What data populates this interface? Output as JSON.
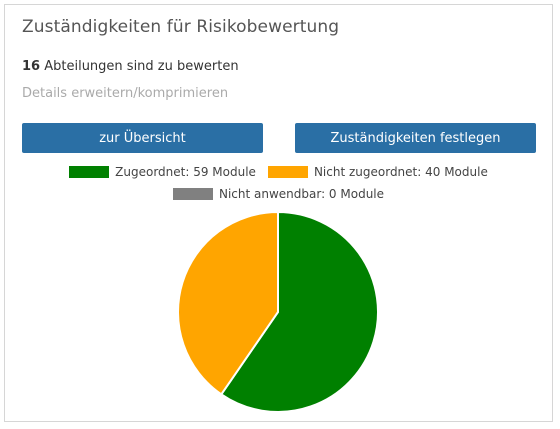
{
  "panel": {
    "title": "Zuständigkeiten für Risikobewertung",
    "summary_count": "16",
    "summary_text": " Abteilungen sind zu bewerten",
    "toggle_label": "Details erweitern/komprimieren"
  },
  "buttons": {
    "overview_label": "zur Übersicht",
    "assign_label": "Zuständigkeiten festlegen"
  },
  "legend": {
    "assigned": {
      "label": "Zugeordnet: 59 Module",
      "color": "#008000"
    },
    "unassigned": {
      "label": "Nicht zugeordnet: 40 Module",
      "color": "#ffa500"
    },
    "not_applicable": {
      "label": "Nicht anwendbar: 0 Module",
      "color": "#808080"
    }
  },
  "chart_data": {
    "type": "pie",
    "categories": [
      "Zugeordnet",
      "Nicht zugeordnet",
      "Nicht anwendbar"
    ],
    "values": [
      59,
      40,
      0
    ],
    "colors": [
      "#008000",
      "#ffa500",
      "#808080"
    ],
    "legend_position": "top"
  }
}
